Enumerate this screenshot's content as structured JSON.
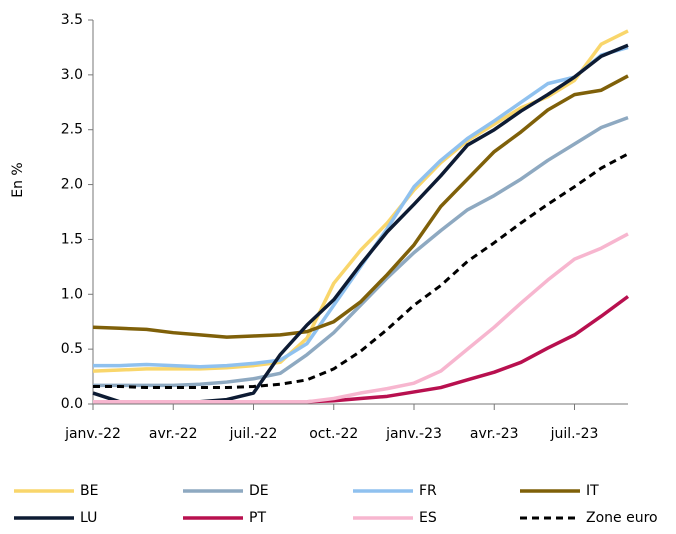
{
  "chart_data": {
    "type": "line",
    "y_label": "En %",
    "categories": [
      "janv.-22",
      null,
      null,
      "avr.-22",
      null,
      null,
      "juil.-22",
      null,
      null,
      "oct.-22",
      null,
      null,
      "janv.-23",
      null,
      null,
      "avr.-23",
      null,
      null,
      "juil.-23",
      null,
      null
    ],
    "series": [
      {
        "name": "BE",
        "color": "#f9d66b",
        "values": [
          0.3,
          0.31,
          0.32,
          0.32,
          0.32,
          0.33,
          0.35,
          0.38,
          0.6,
          1.1,
          1.4,
          1.65,
          1.95,
          2.2,
          2.4,
          2.55,
          2.7,
          2.8,
          2.95,
          3.28,
          3.4
        ]
      },
      {
        "name": "DE",
        "color": "#8ea9c1",
        "values": [
          0.17,
          0.17,
          0.17,
          0.17,
          0.18,
          0.2,
          0.23,
          0.28,
          0.45,
          0.65,
          0.9,
          1.15,
          1.38,
          1.58,
          1.77,
          1.9,
          2.05,
          2.22,
          2.37,
          2.52,
          2.61
        ]
      },
      {
        "name": "FR",
        "color": "#8fc1ef",
        "values": [
          0.35,
          0.35,
          0.36,
          0.35,
          0.34,
          0.35,
          0.37,
          0.4,
          0.55,
          0.9,
          1.25,
          1.6,
          1.98,
          2.22,
          2.42,
          2.58,
          2.75,
          2.92,
          2.98,
          3.18,
          3.25
        ]
      },
      {
        "name": "IT",
        "color": "#7f6009",
        "values": [
          0.7,
          0.69,
          0.68,
          0.65,
          0.63,
          0.61,
          0.62,
          0.63,
          0.66,
          0.75,
          0.93,
          1.18,
          1.45,
          1.8,
          2.05,
          2.3,
          2.48,
          2.68,
          2.82,
          2.86,
          2.99
        ]
      },
      {
        "name": "LU",
        "color": "#0d1b33",
        "values": [
          0.1,
          0.02,
          0.02,
          0.02,
          0.02,
          0.04,
          0.1,
          0.45,
          0.72,
          0.95,
          1.27,
          1.57,
          1.82,
          2.08,
          2.36,
          2.5,
          2.67,
          2.82,
          2.98,
          3.17,
          3.27
        ]
      },
      {
        "name": "PT",
        "color": "#b8104f",
        "values": [
          0.02,
          0.02,
          0.02,
          0.02,
          0.02,
          0.02,
          0.02,
          0.02,
          0.02,
          0.03,
          0.05,
          0.07,
          0.11,
          0.15,
          0.22,
          0.29,
          0.38,
          0.51,
          0.63,
          0.8,
          0.98
        ]
      },
      {
        "name": "ES",
        "color": "#f7b6cf",
        "values": [
          0.02,
          0.02,
          0.02,
          0.02,
          0.02,
          0.02,
          0.02,
          0.02,
          0.02,
          0.05,
          0.1,
          0.14,
          0.19,
          0.3,
          0.5,
          0.7,
          0.92,
          1.13,
          1.32,
          1.42,
          1.55
        ]
      },
      {
        "name": "Zone euro",
        "color": "#000000",
        "style": "dashed",
        "values": [
          0.16,
          0.16,
          0.15,
          0.15,
          0.15,
          0.15,
          0.16,
          0.18,
          0.22,
          0.32,
          0.48,
          0.68,
          0.9,
          1.08,
          1.3,
          1.47,
          1.65,
          1.82,
          1.98,
          2.15,
          2.28
        ]
      }
    ],
    "ylim": [
      0,
      3.5
    ],
    "yticks": [
      {
        "value": 0,
        "label": "0.0"
      },
      0.5,
      {
        "value": 1,
        "label": "1.0"
      },
      1.5,
      {
        "value": 2,
        "label": "2.0"
      },
      2.5,
      {
        "value": 3,
        "label": "3.0"
      },
      3.5
    ],
    "grid": false,
    "legend": "bottom"
  }
}
